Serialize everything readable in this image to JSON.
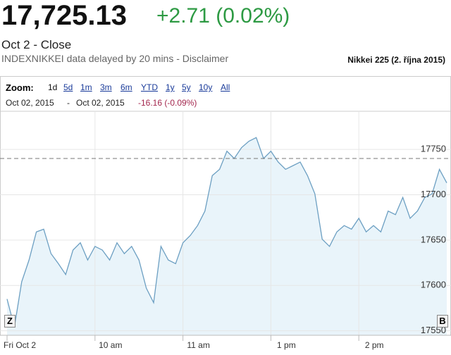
{
  "header": {
    "price": "17,725.13",
    "change": "+2.71 (0.02%)",
    "date_label": "Oct 2 - Close",
    "source": "INDEXNIKKEI data delayed by 20 mins - Disclaimer",
    "caption": "Nikkei 225 (2. října 2015)"
  },
  "zoom": {
    "label": "Zoom:",
    "options": [
      "1d",
      "5d",
      "1m",
      "3m",
      "6m",
      "YTD",
      "1y",
      "5y",
      "10y",
      "All"
    ]
  },
  "range": {
    "start": "Oct 02, 2015",
    "separator": "-",
    "end": "Oct 02, 2015",
    "change": "-16.16 (-0.09%)"
  },
  "buttons": {
    "left": "Z",
    "right": "B"
  },
  "chart_data": {
    "type": "area",
    "color": "#6c9fc2",
    "fill": "#e9f4fa",
    "x": [
      0,
      5,
      10,
      15,
      20,
      25,
      30,
      35,
      40,
      45,
      50,
      55,
      60,
      65,
      70,
      75,
      80,
      85,
      90,
      95,
      100,
      105,
      110,
      115,
      120,
      125,
      130,
      135,
      140,
      145,
      150,
      155,
      160,
      165,
      170,
      175,
      180,
      185,
      190,
      195,
      200,
      205,
      210,
      215,
      220,
      225,
      230,
      235,
      240,
      245,
      250,
      255,
      260,
      265,
      270,
      275,
      280,
      285,
      290,
      295,
      300
    ],
    "values": [
      17585,
      17554,
      17604,
      17628,
      17659,
      17662,
      17635,
      17624,
      17612,
      17639,
      17647,
      17628,
      17643,
      17639,
      17628,
      17647,
      17635,
      17643,
      17628,
      17597,
      17581,
      17643,
      17628,
      17624,
      17647,
      17655,
      17666,
      17682,
      17721,
      17728,
      17748,
      17740,
      17752,
      17759,
      17763,
      17740,
      17748,
      17736,
      17728,
      17732,
      17736,
      17721,
      17701,
      17651,
      17643,
      17659,
      17666,
      17662,
      17674,
      17659,
      17666,
      17659,
      17682,
      17678,
      17697,
      17674,
      17682,
      17697,
      17701,
      17728,
      17713
    ],
    "xlim": [
      -5,
      302
    ],
    "xticks": [
      {
        "value": 0,
        "label": "Fri Oct 2"
      },
      {
        "value": 60,
        "label": "10 am"
      },
      {
        "value": 120,
        "label": "11 am"
      },
      {
        "value": 180,
        "label": "1 pm"
      },
      {
        "value": 240,
        "label": "2 pm"
      }
    ],
    "ylim": [
      17545,
      17792
    ],
    "yticks": [
      17550,
      17600,
      17650,
      17700,
      17750
    ],
    "reference_line": 17740,
    "grid": true
  }
}
